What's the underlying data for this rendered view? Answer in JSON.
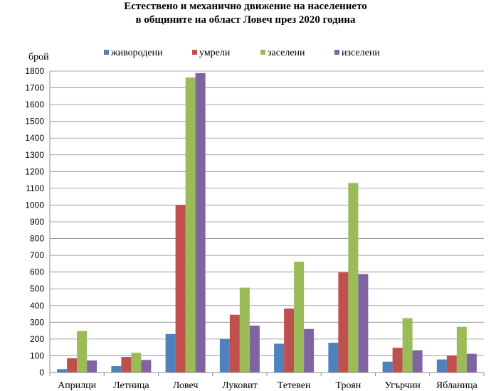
{
  "chart_data": {
    "type": "bar",
    "title_lines": [
      "Естествено и механично движение на населението",
      "в общините на област Ловеч през 2020 година"
    ],
    "ylabel": "брой",
    "ylim": [
      0,
      1800
    ],
    "ytick_step": 100,
    "grid": true,
    "legend_position": "top",
    "categories": [
      "Априлци",
      "Летница",
      "Ловеч",
      "Луковит",
      "Тетевен",
      "Троян",
      "Угърчин",
      "Ябланица"
    ],
    "series": [
      {
        "name": "живородени",
        "color": "#4f81bd",
        "values": [
          20,
          38,
          230,
          200,
          172,
          178,
          65,
          78
        ]
      },
      {
        "name": "умрели",
        "color": "#c0504d",
        "values": [
          85,
          93,
          1000,
          345,
          382,
          598,
          148,
          102
        ]
      },
      {
        "name": "заселени",
        "color": "#9bbb59",
        "values": [
          248,
          118,
          1762,
          507,
          662,
          1132,
          325,
          273
        ]
      },
      {
        "name": "изселени",
        "color": "#8064a2",
        "values": [
          72,
          75,
          1788,
          280,
          260,
          588,
          133,
          112
        ]
      }
    ]
  }
}
